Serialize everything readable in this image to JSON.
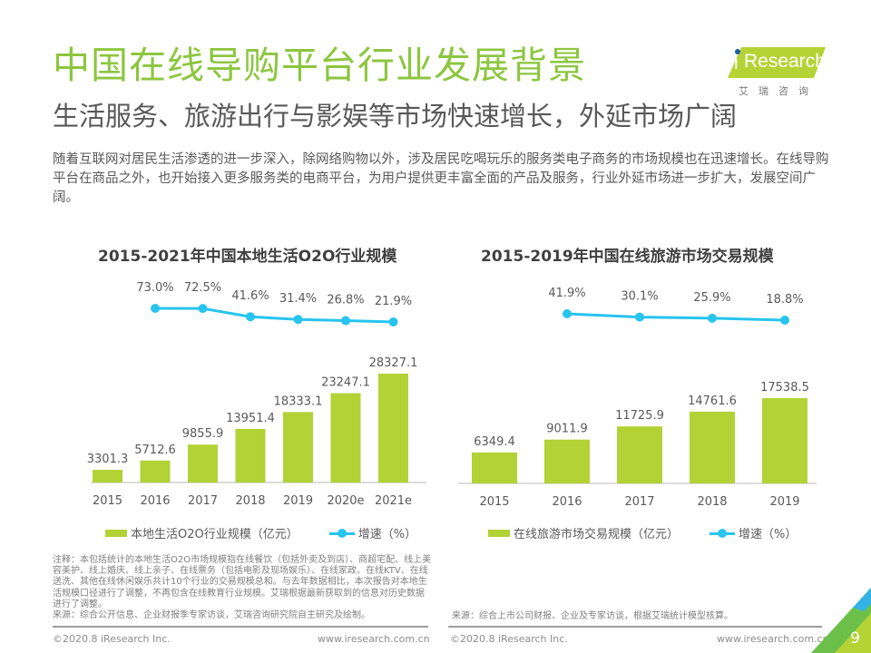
{
  "header": {
    "title": "中国在线导购平台行业发展背景",
    "subtitle": "生活服务、旅游出行与影娱等市场快速增长，外延市场广阔",
    "intro": "随着互联网对居民生活渗透的进一步深入，除网络购物以外，涉及居民吃喝玩乐的服务类电子商务的市场规模也在迅速增长。在线导购平台在商品之外，也开始接入更多服务类的电商平台，为用户提供更丰富全面的产品及服务，行业外延市场进一步扩大，发展空间广阔。"
  },
  "logo": {
    "brand": "Research",
    "brand_prefix": "i",
    "cn": "艾瑞咨询"
  },
  "colors": {
    "title_green": "#8cc63f",
    "bar_green": "#b2d235",
    "line_blue": "#27c4ee",
    "text_gray": "#595959"
  },
  "chart_data": [
    {
      "type": "bar",
      "title": "2015-2021年中国本地生活O2O行业规模",
      "categories": [
        "2015",
        "2016",
        "2017",
        "2018",
        "2019",
        "2020e",
        "2021e"
      ],
      "series": [
        {
          "name": "本地生活O2O行业规模（亿元）",
          "type": "bar",
          "values": [
            3301.3,
            5712.6,
            9855.9,
            13951.4,
            18333.1,
            23247.1,
            28327.1
          ],
          "labels": [
            "3301.3",
            "5712.6",
            "9855.9",
            "13951.4",
            "18333.1",
            "23247.1",
            "28327.1"
          ]
        },
        {
          "name": "增速（%）",
          "type": "line",
          "values": [
            null,
            73.0,
            72.5,
            41.6,
            31.4,
            26.8,
            21.9
          ],
          "labels": [
            "",
            "73.0%",
            "72.5%",
            "41.6%",
            "31.4%",
            "26.8%",
            "21.9%"
          ]
        }
      ],
      "xlabel": "",
      "ylabel": "",
      "legend_position": "bottom",
      "grid": false
    },
    {
      "type": "bar",
      "title": "2015-2019年中国在线旅游市场交易规模",
      "categories": [
        "2015",
        "2016",
        "2017",
        "2018",
        "2019"
      ],
      "series": [
        {
          "name": "在线旅游市场交易规模（亿元）",
          "type": "bar",
          "values": [
            6349.4,
            9011.9,
            11725.9,
            14761.6,
            17538.5
          ],
          "labels": [
            "6349.4",
            "9011.9",
            "11725.9",
            "14761.6",
            "17538.5"
          ]
        },
        {
          "name": "增速（%）",
          "type": "line",
          "values": [
            null,
            41.9,
            30.1,
            25.9,
            18.8
          ],
          "labels": [
            "",
            "41.9%",
            "30.1%",
            "25.9%",
            "18.8%"
          ]
        }
      ],
      "xlabel": "",
      "ylabel": "",
      "legend_position": "bottom",
      "grid": false
    }
  ],
  "notes": {
    "left": "注释：本包括统计的本地生活O2O市场规模指在线餐饮（包括外卖及到店）、商超宅配、线上美容美护、线上婚庆、线上亲子、在线票务（包括电影及现场娱乐）、在线家政、在线KTV、在线送洗、其他在线休闲娱乐共计10个行业的交易规模总和。与去年数据相比，本次报告对本地生活规模口径进行了调整，不再包含在线教育行业规模。艾瑞根据最新获取到的信息对历史数据进行了调整。",
    "left_source": "来源：综合公开信息、企业财报季专家访谈，艾瑞咨询研究院自主研究及绘制。",
    "right_source": "来源：综合上市公司财报、企业及专家访谈，根据艾瑞统计模型核算。"
  },
  "footer": {
    "copyright_left": "©2020.8 iResearch Inc.",
    "url_left": "www.iresearch.com.cn",
    "copyright_right": "©2020.8 iResearch Inc.",
    "url_right": "www.iresearch.com.cn",
    "page_number": "9"
  }
}
